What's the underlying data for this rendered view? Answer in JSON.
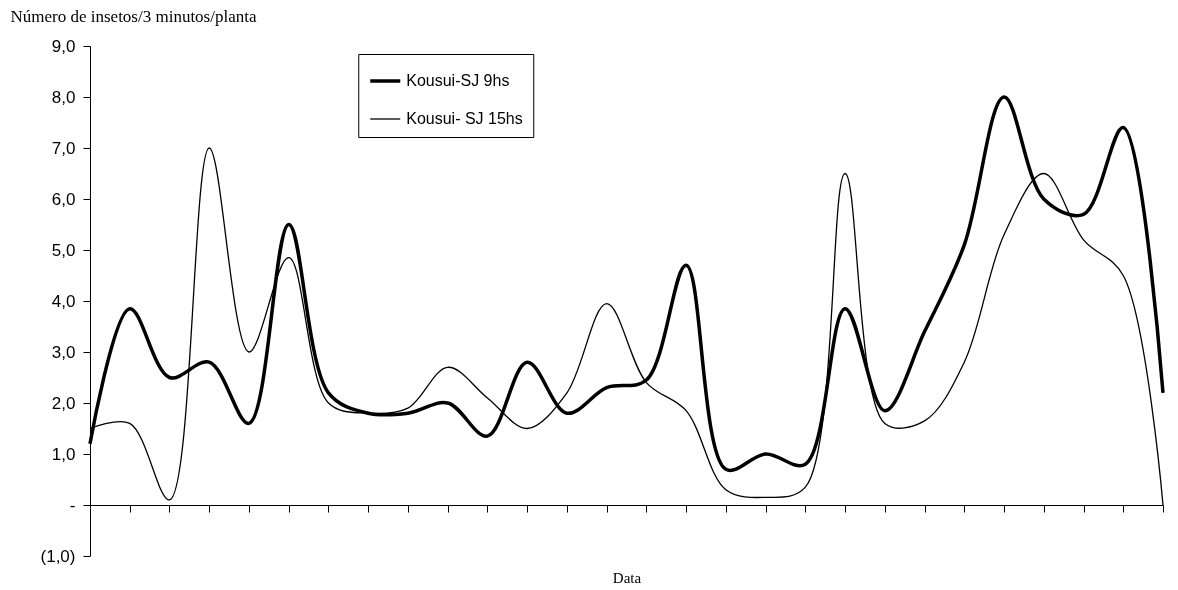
{
  "chart_data": {
    "type": "line",
    "ylabel": "Número de insetos/3 minutos/planta",
    "xlabel": "Data",
    "categories": [
      null,
      null,
      null,
      null,
      null,
      null,
      null,
      null,
      null,
      null,
      null,
      null,
      null,
      null,
      null,
      null,
      null,
      null,
      null,
      null,
      null,
      null,
      null,
      null,
      null,
      null,
      null,
      null
    ],
    "series": [
      {
        "name": "Kousui-SJ 9hs",
        "color": "#000000",
        "values": [
          1.2,
          3.85,
          2.5,
          2.8,
          1.6,
          5.5,
          2.2,
          1.8,
          1.8,
          2.0,
          1.35,
          2.8,
          1.8,
          2.3,
          2.45,
          4.7,
          0.7,
          1.0,
          0.8,
          3.85,
          1.85,
          3.4,
          5.1,
          8.0,
          6.0,
          5.7,
          7.4,
          2.2
        ]
      },
      {
        "name": "Kousui- SJ 15hs",
        "color": "#000000",
        "values": [
          1.5,
          1.6,
          0.1,
          7.0,
          3.0,
          4.85,
          2.0,
          1.8,
          1.9,
          2.7,
          2.1,
          1.5,
          2.2,
          3.95,
          2.4,
          1.85,
          0.3,
          0.15,
          0.35,
          6.5,
          1.6,
          1.65,
          2.8,
          5.3,
          6.5,
          5.2,
          4.5,
          0.0
        ]
      }
    ],
    "ylim": [
      -1,
      9
    ],
    "yticks": [
      {
        "value": -1,
        "label": "(1,0)"
      },
      {
        "value": 0,
        "label": "-"
      },
      {
        "value": 1,
        "label": "1,0"
      },
      {
        "value": 2,
        "label": "2,0"
      },
      {
        "value": 3,
        "label": "3,0"
      },
      {
        "value": 4,
        "label": "4,0"
      },
      {
        "value": 5,
        "label": "5,0"
      },
      {
        "value": 6,
        "label": "6,0"
      },
      {
        "value": 7,
        "label": "7,0"
      },
      {
        "value": 8,
        "label": "8,0"
      },
      {
        "value": 9,
        "label": "9,0"
      }
    ],
    "tick_labels": "y",
    "legend": "top",
    "marker": "none",
    "line_style": "solid"
  }
}
